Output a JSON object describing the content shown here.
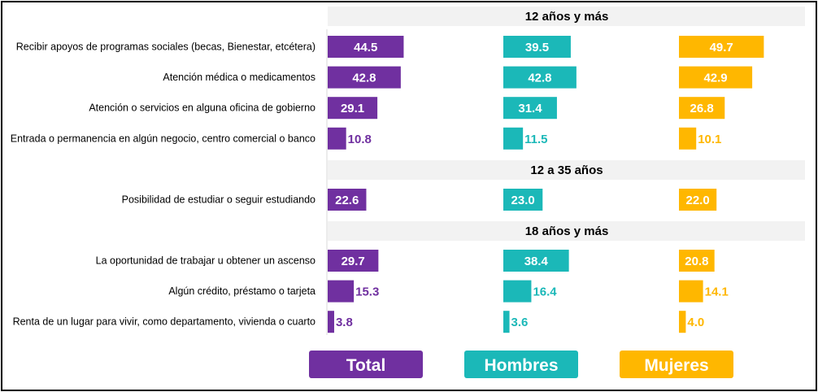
{
  "chart_data": {
    "type": "bar",
    "orientation": "horizontal",
    "panels": [
      "Total",
      "Hombres",
      "Mujeres"
    ],
    "colors": {
      "Total": "#7030a0",
      "Hombres": "#1bb8b8",
      "Mujeres": "#ffb700",
      "section_bg": "#f2f2f2"
    },
    "xlim": [
      0,
      100
    ],
    "sections": [
      {
        "title": "12 años y más",
        "rows": [
          {
            "label": "Recibir apoyos de programas sociales (becas, Bienestar, etcétera)",
            "values": [
              44.5,
              39.5,
              49.7
            ],
            "display": [
              "44.5",
              "39.5",
              "49.7"
            ]
          },
          {
            "label": "Atención médica o medicamentos",
            "values": [
              42.8,
              42.8,
              42.9
            ],
            "display": [
              "42.8",
              "42.8",
              "42.9"
            ]
          },
          {
            "label": "Atención o servicios en alguna oficina de gobierno",
            "values": [
              29.1,
              31.4,
              26.8
            ],
            "display": [
              "29.1",
              "31.4",
              "26.8"
            ]
          },
          {
            "label": "Entrada o permanencia en algún negocio, centro comercial o banco",
            "values": [
              10.8,
              11.5,
              10.1
            ],
            "display": [
              "10.8",
              "11.5",
              "10.1"
            ]
          }
        ]
      },
      {
        "title": "12 a 35 años",
        "rows": [
          {
            "label": "Posibilidad de estudiar o seguir estudiando",
            "values": [
              22.6,
              23.0,
              22.0
            ],
            "display": [
              "22.6",
              "23.0",
              "22.0"
            ]
          }
        ]
      },
      {
        "title": "18 años y más",
        "rows": [
          {
            "label": "La oportunidad de trabajar u obtener un ascenso",
            "values": [
              29.7,
              38.4,
              20.8
            ],
            "display": [
              "29.7",
              "38.4",
              "20.8"
            ]
          },
          {
            "label": "Algún crédito, préstamo o tarjeta",
            "values": [
              15.3,
              16.4,
              14.1
            ],
            "display": [
              "15.3",
              "16.4",
              "14.1"
            ]
          },
          {
            "label": "Renta de un lugar para vivir, como departamento, vivienda o cuarto",
            "values": [
              3.8,
              3.6,
              4.0
            ],
            "display": [
              "3.8",
              "3.6",
              "4.0"
            ]
          }
        ]
      }
    ],
    "legend": [
      "Total",
      "Hombres",
      "Mujeres"
    ],
    "legend_position": "bottom"
  }
}
